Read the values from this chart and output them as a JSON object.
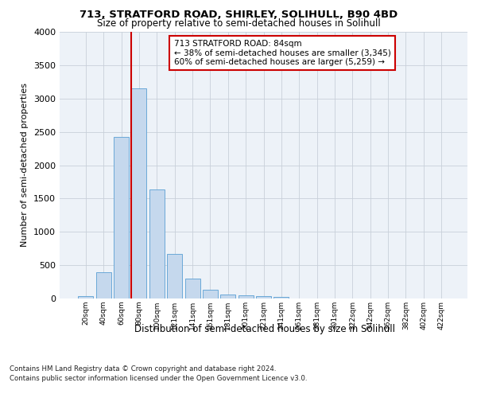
{
  "title1": "713, STRATFORD ROAD, SHIRLEY, SOLIHULL, B90 4BD",
  "title2": "Size of property relative to semi-detached houses in Solihull",
  "xlabel": "Distribution of semi-detached houses by size in Solihull",
  "ylabel": "Number of semi-detached properties",
  "footnote1": "Contains HM Land Registry data © Crown copyright and database right 2024.",
  "footnote2": "Contains public sector information licensed under the Open Government Licence v3.0.",
  "bar_labels": [
    "20sqm",
    "40sqm",
    "60sqm",
    "80sqm",
    "100sqm",
    "121sqm",
    "141sqm",
    "161sqm",
    "181sqm",
    "201sqm",
    "221sqm",
    "241sqm",
    "261sqm",
    "281sqm",
    "301sqm",
    "322sqm",
    "342sqm",
    "362sqm",
    "382sqm",
    "402sqm",
    "422sqm"
  ],
  "bar_values": [
    30,
    400,
    2420,
    3150,
    1630,
    670,
    295,
    130,
    60,
    50,
    40,
    25,
    0,
    0,
    0,
    0,
    0,
    0,
    0,
    0,
    0
  ],
  "bar_color": "#c5d8ed",
  "bar_edge_color": "#5a9fd4",
  "ylim": [
    0,
    4000
  ],
  "yticks": [
    0,
    500,
    1000,
    1500,
    2000,
    2500,
    3000,
    3500,
    4000
  ],
  "property_bar_index": 3,
  "red_line_x": 2.575,
  "red_line_color": "#cc0000",
  "annotation_text_line1": "713 STRATFORD ROAD: 84sqm",
  "annotation_text_line2": "← 38% of semi-detached houses are smaller (3,345)",
  "annotation_text_line3": "60% of semi-detached houses are larger (5,259) →",
  "annotation_box_color": "#cc0000",
  "background_color": "#ffffff",
  "ax_facecolor": "#edf2f8",
  "grid_color": "#c8d0da",
  "title1_fontsize": 9.5,
  "title2_fontsize": 8.5,
  "ylabel_fontsize": 8,
  "xlabel_fontsize": 8.5,
  "ytick_fontsize": 8,
  "xtick_fontsize": 6.5,
  "footnote_fontsize": 6.2,
  "ann_fontsize": 7.5
}
